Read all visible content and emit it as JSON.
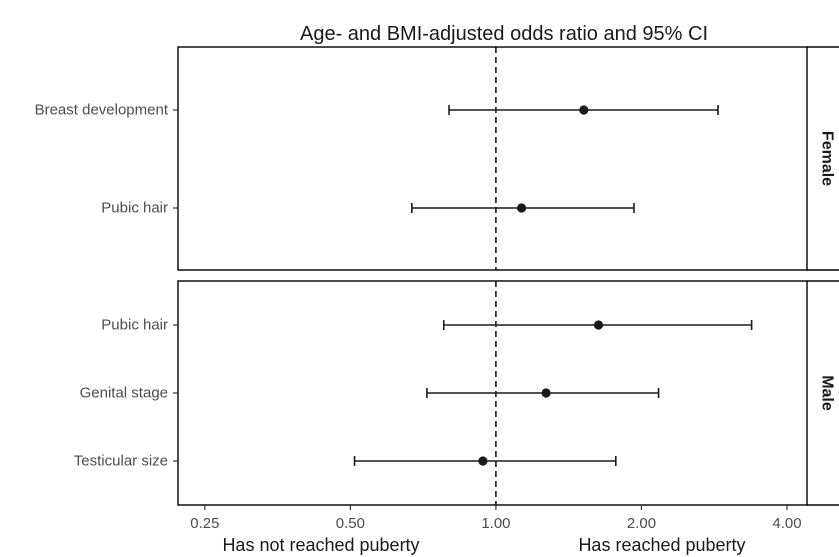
{
  "chart_data": {
    "type": "forest",
    "title": "Age- and BMI-adjusted  odds ratio and 95% CI",
    "x_scale": "log2",
    "xlim": [
      0.22,
      4.4
    ],
    "x_ticks": [
      0.25,
      0.5,
      1.0,
      2.0,
      4.0
    ],
    "x_tick_labels": [
      "0.25",
      "0.50",
      "1.00",
      "2.00",
      "4.00"
    ],
    "reference_line": 1.0,
    "direction_labels": {
      "left": "Has not reached puberty",
      "right": "Has reached puberty"
    },
    "panels": [
      {
        "name": "Female",
        "rows": [
          {
            "label": "Breast development",
            "or": 1.52,
            "lower": 0.8,
            "upper": 2.88
          },
          {
            "label": "Pubic hair",
            "or": 1.13,
            "lower": 0.67,
            "upper": 1.93
          }
        ]
      },
      {
        "name": "Male",
        "rows": [
          {
            "label": "Pubic hair",
            "or": 1.63,
            "lower": 0.78,
            "upper": 3.38
          },
          {
            "label": "Genital stage",
            "or": 1.27,
            "lower": 0.72,
            "upper": 2.17
          },
          {
            "label": "Testicular size",
            "or": 0.94,
            "lower": 0.51,
            "upper": 1.77
          }
        ]
      }
    ],
    "colors": {
      "point": "#1a1a1a",
      "line": "#1a1a1a",
      "frame": "#000000"
    }
  }
}
